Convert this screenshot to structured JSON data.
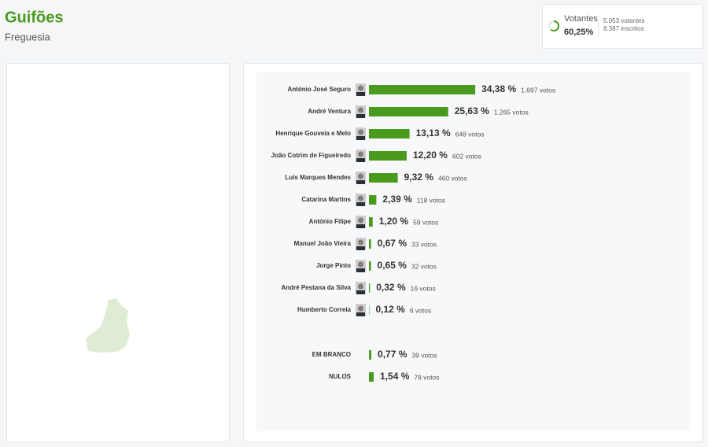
{
  "header": {
    "title": "Guifões",
    "subtitle": "Freguesia"
  },
  "turnout": {
    "label": "Votantes",
    "percent": {
      "value": 60.25,
      "label": "60,25%"
    },
    "voters": "5.053 votantes",
    "registered": "8.387 inscritos",
    "color": "#4a9a1e"
  },
  "chart_data": {
    "type": "bar",
    "orientation": "horizontal",
    "color": "#4a9a1e",
    "xlim": [
      0,
      100
    ],
    "categories": [
      "António José Seguro",
      "André Ventura",
      "Henrique Gouveia e Melo",
      "João Cotrim de Figueiredo",
      "Luís Marques Mendes",
      "Catarina Martins",
      "António Filipe",
      "Manuel João Vieira",
      "Jorge Pinto",
      "André Pestana da Silva",
      "Humberto Correia",
      "EM BRANCO",
      "NULOS"
    ],
    "values": [
      34.38,
      25.63,
      13.13,
      12.2,
      9.32,
      2.39,
      1.2,
      0.67,
      0.65,
      0.32,
      0.12,
      0.77,
      1.54
    ],
    "value_labels": [
      "34,38 %",
      "25,63 %",
      "13,13 %",
      "12,20 %",
      "9,32 %",
      "2,39 %",
      "1,20 %",
      "0,67 %",
      "0,65 %",
      "0,32 %",
      "0,12 %",
      "0,77 %",
      "1,54 %"
    ],
    "vote_labels": [
      "1.697 votos",
      "1.265 votos",
      "648 votos",
      "602 votos",
      "460 votos",
      "118 votos",
      "59 votos",
      "33 votos",
      "32 votos",
      "16 votos",
      "6 votos",
      "39 votos",
      "78 votos"
    ]
  }
}
